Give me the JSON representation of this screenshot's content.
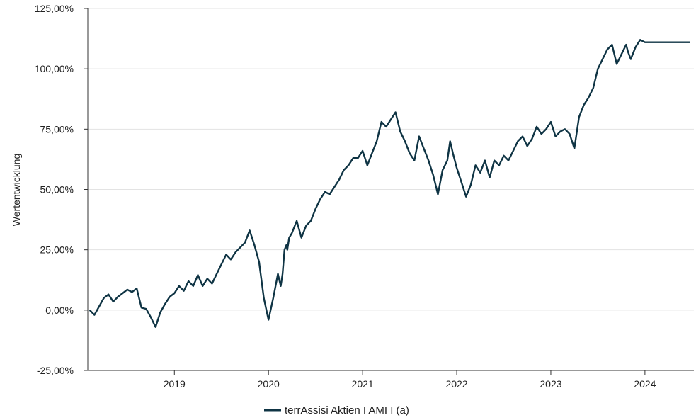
{
  "chart_data": {
    "type": "line",
    "ylabel": "Wertentwicklung",
    "xlabel": "",
    "ylim": [
      -25,
      125
    ],
    "xlim": [
      2018.08,
      2024.52
    ],
    "y_ticks": [
      {
        "value": -25,
        "label": "-25,00%"
      },
      {
        "value": 0,
        "label": "0,00%"
      },
      {
        "value": 25,
        "label": "25,00%"
      },
      {
        "value": 50,
        "label": "50,00%"
      },
      {
        "value": 75,
        "label": "75,00%"
      },
      {
        "value": 100,
        "label": "100,00%"
      },
      {
        "value": 125,
        "label": "125,00%"
      }
    ],
    "x_ticks": [
      {
        "value": 2019,
        "label": "2019"
      },
      {
        "value": 2020,
        "label": "2020"
      },
      {
        "value": 2021,
        "label": "2021"
      },
      {
        "value": 2022,
        "label": "2022"
      },
      {
        "value": 2023,
        "label": "2023"
      },
      {
        "value": 2024,
        "label": "2024"
      }
    ],
    "grid": true,
    "legend": "bottom-center",
    "series": [
      {
        "name": "terrAssisi Aktien I AMI I (a)",
        "color": "#0f3444",
        "x": [
          2018.1,
          2018.15,
          2018.2,
          2018.25,
          2018.3,
          2018.35,
          2018.4,
          2018.45,
          2018.5,
          2018.55,
          2018.6,
          2018.65,
          2018.7,
          2018.75,
          2018.8,
          2018.85,
          2018.9,
          2018.95,
          2019.0,
          2019.05,
          2019.1,
          2019.15,
          2019.2,
          2019.25,
          2019.3,
          2019.35,
          2019.4,
          2019.45,
          2019.5,
          2019.55,
          2019.6,
          2019.65,
          2019.7,
          2019.75,
          2019.8,
          2019.85,
          2019.9,
          2019.95,
          2020.0,
          2020.05,
          2020.1,
          2020.13,
          2020.15,
          2020.17,
          2020.19,
          2020.2,
          2020.22,
          2020.25,
          2020.3,
          2020.35,
          2020.4,
          2020.45,
          2020.5,
          2020.55,
          2020.6,
          2020.65,
          2020.7,
          2020.75,
          2020.8,
          2020.85,
          2020.9,
          2020.95,
          2021.0,
          2021.05,
          2021.1,
          2021.15,
          2021.2,
          2021.25,
          2021.3,
          2021.35,
          2021.4,
          2021.45,
          2021.5,
          2021.55,
          2021.6,
          2021.65,
          2021.7,
          2021.75,
          2021.8,
          2021.85,
          2021.9,
          2021.93,
          2021.96,
          2022.0,
          2022.05,
          2022.1,
          2022.15,
          2022.2,
          2022.25,
          2022.3,
          2022.35,
          2022.4,
          2022.45,
          2022.5,
          2022.55,
          2022.6,
          2022.65,
          2022.7,
          2022.75,
          2022.8,
          2022.85,
          2022.9,
          2022.95,
          2023.0,
          2023.05,
          2023.1,
          2023.15,
          2023.2,
          2023.25,
          2023.3,
          2023.35,
          2023.4,
          2023.45,
          2023.5,
          2023.55,
          2023.6,
          2023.65,
          2023.7,
          2023.75,
          2023.8,
          2023.82,
          2023.85,
          2023.9,
          2023.95,
          2024.0,
          2024.05,
          2024.1,
          2024.15,
          2024.2,
          2024.25,
          2024.3,
          2024.35,
          2024.4,
          2024.45,
          2024.48
        ],
        "y": [
          0.0,
          -2.0,
          1.5,
          5.0,
          6.5,
          3.5,
          5.5,
          7.0,
          8.5,
          7.5,
          9.0,
          1.0,
          0.5,
          -3.0,
          -7.0,
          -1.0,
          2.5,
          5.5,
          7.0,
          10.0,
          8.0,
          12.0,
          10.0,
          14.5,
          10.0,
          13.0,
          11.0,
          15.0,
          19.0,
          23.0,
          21.0,
          24.0,
          26.0,
          28.0,
          33.0,
          27.0,
          20.0,
          5.0,
          -4.0,
          5.0,
          15.0,
          10.0,
          15.0,
          25.0,
          27.0,
          25.0,
          30.0,
          32.0,
          37.0,
          30.0,
          35.0,
          37.0,
          42.0,
          46.0,
          49.0,
          48.0,
          51.0,
          54.0,
          58.0,
          60.0,
          63.0,
          63.0,
          66.0,
          60.0,
          65.0,
          70.0,
          78.0,
          76.0,
          79.0,
          82.0,
          74.0,
          70.0,
          65.0,
          62.0,
          72.0,
          67.0,
          62.0,
          56.0,
          48.0,
          58.0,
          62.0,
          70.0,
          65.0,
          59.0,
          53.0,
          47.0,
          52.0,
          60.0,
          57.0,
          62.0,
          55.0,
          62.0,
          60.0,
          64.0,
          62.0,
          66.0,
          70.0,
          72.0,
          68.0,
          71.0,
          76.0,
          73.0,
          75.0,
          78.0,
          72.0,
          74.0,
          75.0,
          73.0,
          67.0,
          80.0,
          85.0,
          88.0,
          92.0,
          100.0,
          104.0,
          108.0,
          110.0,
          102.0,
          106.0,
          110.0,
          107.0,
          104.0,
          109.0,
          112.0,
          111.0,
          111.0,
          111.0,
          111.0,
          111.0,
          111.0,
          111.0,
          111.0,
          111.0,
          111.0,
          111.0
        ]
      }
    ]
  }
}
